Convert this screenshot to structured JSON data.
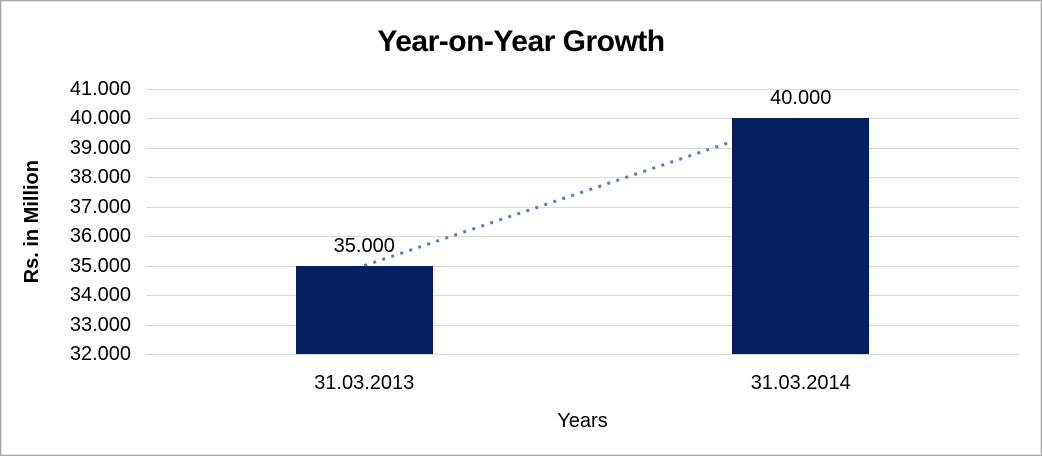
{
  "chart_data": {
    "type": "bar",
    "title": "Year-on-Year Growth",
    "xlabel": "Years",
    "ylabel": "Rs. in Million",
    "categories": [
      "31.03.2013",
      "31.03.2014"
    ],
    "values": [
      35000,
      40000
    ],
    "data_labels": [
      "35.000",
      "40.000"
    ],
    "yticks": [
      "41.000",
      "40.000",
      "39.000",
      "38.000",
      "37.000",
      "36.000",
      "35.000",
      "34.000",
      "33.000",
      "32.000"
    ],
    "ylim": [
      32000,
      41000
    ],
    "ytick_step": 1000,
    "grid": true,
    "legend_position": "none",
    "trendline": {
      "style": "dotted",
      "from_value": 35000,
      "to_value": 40000
    },
    "colors": {
      "bar": "#002060",
      "trendline": "#4f81bd",
      "gridline": "#d9d9d9",
      "text": "#000000"
    }
  }
}
